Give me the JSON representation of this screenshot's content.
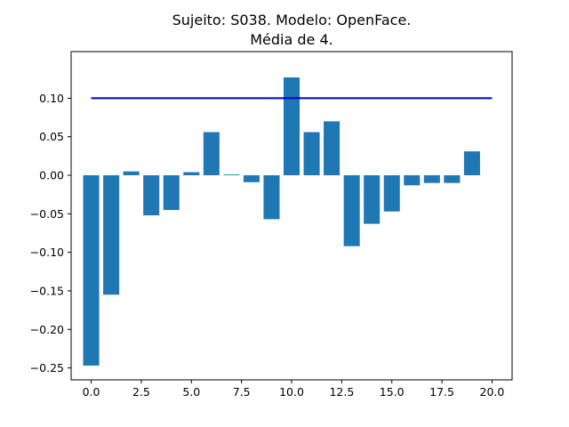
{
  "chart_data": {
    "type": "bar",
    "title_line1": "Sujeito: S038. Modelo: OpenFace.",
    "title_line2": "Média de 4.",
    "xlabel": "",
    "ylabel": "",
    "x": [
      0,
      1,
      2,
      3,
      4,
      5,
      6,
      7,
      8,
      9,
      10,
      11,
      12,
      13,
      14,
      15,
      16,
      17,
      18,
      19
    ],
    "values": [
      -0.247,
      -0.155,
      0.005,
      -0.052,
      -0.045,
      0.004,
      0.056,
      0.001,
      -0.009,
      -0.057,
      0.127,
      0.056,
      0.07,
      -0.092,
      -0.063,
      -0.047,
      -0.013,
      -0.01,
      -0.01,
      0.031
    ],
    "bar_width": 0.8,
    "bar_color": "#1f77b4",
    "threshold": {
      "x": [
        0,
        20
      ],
      "y": 0.1,
      "color": "#0000cc"
    },
    "xlim": [
      -1.0,
      21.0
    ],
    "ylim": [
      -0.2655,
      0.1605
    ],
    "xticks": [
      0.0,
      2.5,
      5.0,
      7.5,
      10.0,
      12.5,
      15.0,
      17.5,
      20.0
    ],
    "xtick_labels": [
      "0.0",
      "2.5",
      "5.0",
      "7.5",
      "10.0",
      "12.5",
      "15.0",
      "17.5",
      "20.0"
    ],
    "yticks": [
      -0.25,
      -0.2,
      -0.15,
      -0.1,
      -0.05,
      0.0,
      0.05,
      0.1
    ],
    "ytick_labels": [
      "−0.25",
      "−0.20",
      "−0.15",
      "−0.10",
      "−0.05",
      "0.00",
      "0.05",
      "0.10"
    ],
    "grid": false,
    "legend": "none"
  }
}
